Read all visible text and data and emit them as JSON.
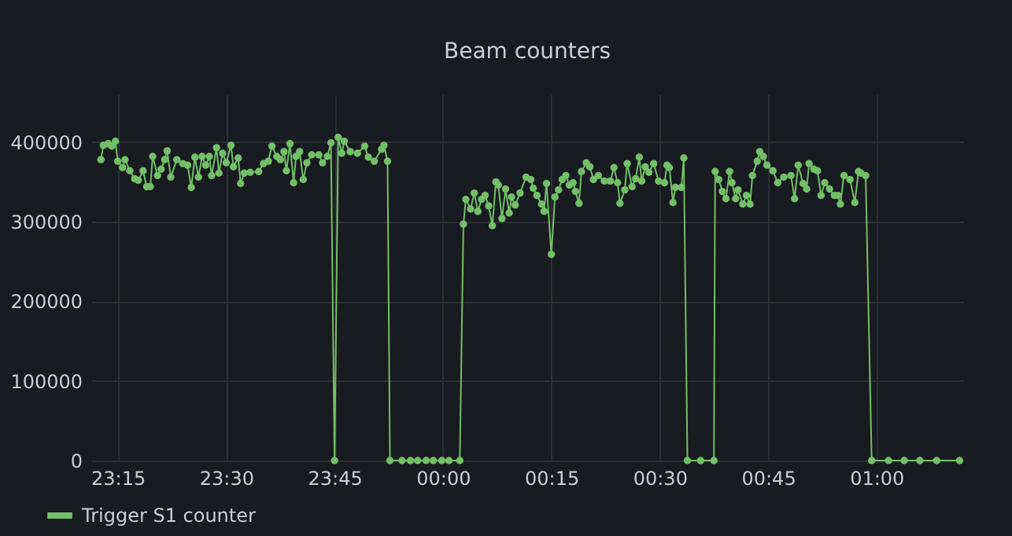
{
  "chart_data": {
    "type": "line",
    "title": "Beam counters",
    "x": [
      "--01-01T23:12:40",
      "--01-01T23:13:00",
      "--01-01T23:13:40",
      "--01-01T23:14:10",
      "--01-01T23:14:40",
      "--01-01T23:15:00",
      "--01-01T23:15:40",
      "--01-01T23:16:00",
      "--01-01T23:16:40",
      "--01-01T23:17:20",
      "--01-01T23:17:50",
      "--01-01T23:18:30",
      "--01-01T23:19:00",
      "--01-01T23:19:30",
      "--01-01T23:19:50",
      "--01-01T23:20:30",
      "--01-01T23:21:00",
      "--01-01T23:21:30",
      "--01-01T23:21:50",
      "--01-01T23:22:20",
      "--01-01T23:23:10",
      "--01-01T23:24:00",
      "--01-01T23:24:40",
      "--01-01T23:25:10",
      "--01-01T23:25:40",
      "--01-01T23:26:10",
      "--01-01T23:26:40",
      "--01-01T23:27:10",
      "--01-01T23:27:40",
      "--01-01T23:28:00",
      "--01-01T23:28:40",
      "--01-01T23:29:00",
      "--01-01T23:29:30",
      "--01-01T23:30:00",
      "--01-01T23:30:40",
      "--01-01T23:31:00",
      "--01-01T23:31:40",
      "--01-01T23:32:00",
      "--01-01T23:32:30",
      "--01-01T23:33:20",
      "--01-01T23:34:30",
      "--01-01T23:35:10",
      "--01-01T23:35:50",
      "--01-01T23:36:20",
      "--01-01T23:37:00",
      "--01-01T23:37:30",
      "--01-01T23:38:00",
      "--01-01T23:38:20",
      "--01-01T23:38:50",
      "--01-01T23:39:20",
      "--01-01T23:39:40",
      "--01-01T23:40:10",
      "--01-01T23:40:40",
      "--01-01T23:41:10",
      "--01-01T23:41:50",
      "--01-01T23:42:50",
      "--01-01T23:43:20",
      "--01-01T23:44:00",
      "--01-01T23:44:30",
      "--01-01T23:45:00",
      "--01-01T23:45:30",
      "--01-01T23:46:00",
      "--01-01T23:46:20",
      "--01-01T23:47:10",
      "--01-01T23:48:10",
      "--01-01T23:49:10",
      "--01-01T23:49:40",
      "--01-01T23:50:30",
      "--01-01T23:51:30",
      "--01-01T23:51:50",
      "--01-01T23:52:20",
      "--01-01T23:52:40",
      "--01-01T23:54:20",
      "--01-01T23:55:30",
      "--01-01T23:56:30",
      "--01-01T23:57:40",
      "--01-01T23:58:40",
      "--01-01T23:59:50",
      "--01-02T00:00:50",
      "--01-02T00:02:20",
      "--01-02T00:02:50",
      "--01-02T00:03:10",
      "--01-02T00:03:50",
      "--01-02T00:04:20",
      "--01-02T00:04:50",
      "--01-02T00:05:20",
      "--01-02T00:05:50",
      "--01-02T00:06:20",
      "--01-02T00:06:50",
      "--01-02T00:07:20",
      "--01-02T00:07:40",
      "--01-02T00:08:10",
      "--01-02T00:08:40",
      "--01-02T00:09:10",
      "--01-02T00:09:30",
      "--01-02T00:10:00",
      "--01-02T00:10:40",
      "--01-02T00:11:30",
      "--01-02T00:12:10",
      "--01-02T00:12:30",
      "--01-02T00:13:00",
      "--01-02T00:13:40",
      "--01-02T00:14:00",
      "--01-02T00:14:20",
      "--01-02T00:15:00",
      "--01-02T00:15:30",
      "--01-02T00:16:00",
      "--01-02T00:16:30",
      "--01-02T00:17:00",
      "--01-02T00:17:30",
      "--01-02T00:18:00",
      "--01-02T00:18:20",
      "--01-02T00:18:50",
      "--01-02T00:19:10",
      "--01-02T00:19:50",
      "--01-02T00:20:20",
      "--01-02T00:20:50",
      "--01-02T00:21:30",
      "--01-02T00:22:20",
      "--01-02T00:23:10",
      "--01-02T00:23:40",
      "--01-02T00:24:10",
      "--01-02T00:24:30",
      "--01-02T00:25:10",
      "--01-02T00:25:30",
      "--01-02T00:26:10",
      "--01-02T00:26:40",
      "--01-02T00:27:10",
      "--01-02T00:27:30",
      "--01-02T00:28:00",
      "--01-02T00:28:30",
      "--01-02T00:29:10",
      "--01-02T00:29:50",
      "--01-02T00:30:40",
      "--01-02T00:31:00",
      "--01-02T00:31:20",
      "--01-02T00:31:50",
      "--01-02T00:32:10",
      "--01-02T00:33:00",
      "--01-02T00:33:20",
      "--01-02T00:33:50",
      "--01-02T00:35:40",
      "--01-02T00:37:30",
      "--01-02T00:37:40",
      "--01-02T00:38:10",
      "--01-02T00:38:40",
      "--01-02T00:39:10",
      "--01-02T00:39:40",
      "--01-02T00:40:00",
      "--01-02T00:40:30",
      "--01-02T00:40:50",
      "--01-02T00:41:30",
      "--01-02T00:42:00",
      "--01-02T00:42:30",
      "--01-02T00:42:50",
      "--01-02T00:43:30",
      "--01-02T00:43:50",
      "--01-02T00:44:20",
      "--01-02T00:44:50",
      "--01-02T00:45:40",
      "--01-02T00:46:20",
      "--01-02T00:47:10",
      "--01-02T00:48:10",
      "--01-02T00:48:40",
      "--01-02T00:49:10",
      "--01-02T00:49:50",
      "--01-02T00:50:20",
      "--01-02T00:50:40",
      "--01-02T00:51:20",
      "--01-02T00:51:50",
      "--01-02T00:52:20",
      "--01-02T00:52:50",
      "--01-02T00:53:30",
      "--01-02T00:54:10",
      "--01-02T00:54:40",
      "--01-02T00:55:00",
      "--01-02T00:55:30",
      "--01-02T00:56:20",
      "--01-02T00:57:00",
      "--01-02T00:57:30",
      "--01-02T00:57:50",
      "--01-02T00:58:30",
      "--01-02T00:59:20",
      "--01-02T01:01:40",
      "--01-02T01:03:50",
      "--01-02T01:06:00",
      "--01-02T01:08:20",
      "--01-02T01:11:30"
    ],
    "series": [
      {
        "name": "Trigger S1 counter",
        "color": "#73bf69",
        "values": [
          378000,
          396000,
          398000,
          395000,
          401000,
          376000,
          368000,
          378000,
          364000,
          354000,
          352000,
          364000,
          344000,
          344000,
          382000,
          358000,
          366000,
          378000,
          389000,
          356000,
          378000,
          373000,
          371000,
          343000,
          381000,
          356000,
          382000,
          371000,
          382000,
          358000,
          393000,
          361000,
          386000,
          374000,
          396000,
          369000,
          380000,
          348000,
          361000,
          362000,
          363000,
          373000,
          376000,
          395000,
          382000,
          378000,
          388000,
          364000,
          398000,
          349000,
          382000,
          388000,
          353000,
          374000,
          384000,
          384000,
          374000,
          382000,
          399000,
          0,
          406000,
          386000,
          401000,
          388000,
          386000,
          395000,
          381000,
          376000,
          391000,
          396000,
          376000,
          0,
          0,
          0,
          0,
          0,
          0,
          0,
          0,
          0,
          297000,
          328000,
          316000,
          336000,
          313000,
          328000,
          333000,
          320000,
          295000,
          350000,
          346000,
          304000,
          341000,
          311000,
          331000,
          321000,
          336000,
          356000,
          353000,
          342000,
          333000,
          322000,
          313000,
          348000,
          259000,
          331000,
          340000,
          353000,
          358000,
          346000,
          349000,
          338000,
          323000,
          363000,
          374000,
          369000,
          353000,
          358000,
          351000,
          351000,
          368000,
          349000,
          323000,
          340000,
          373000,
          344000,
          354000,
          381000,
          351000,
          369000,
          362000,
          373000,
          351000,
          349000,
          371000,
          368000,
          324000,
          343000,
          343000,
          380000,
          0,
          0,
          0,
          363000,
          353000,
          338000,
          329000,
          363000,
          349000,
          329000,
          340000,
          322000,
          333000,
          322000,
          358000,
          376000,
          388000,
          382000,
          371000,
          364000,
          349000,
          356000,
          358000,
          329000,
          371000,
          348000,
          341000,
          373000,
          366000,
          364000,
          333000,
          349000,
          341000,
          333000,
          333000,
          322000,
          358000,
          353000,
          324000,
          363000,
          361000,
          358000,
          0,
          0,
          0,
          0,
          0,
          0
        ]
      }
    ],
    "xlim": [
      "--01-01T23:11:20",
      "--01-02T01:12:00"
    ],
    "xticks": [
      {
        "value": "--01-01T23:15",
        "label": "23:15"
      },
      {
        "value": "--01-01T23:30",
        "label": "23:30"
      },
      {
        "value": "--01-01T23:45",
        "label": "23:45"
      },
      {
        "value": "--01-02T00:00",
        "label": "00:00"
      },
      {
        "value": "--01-02T00:15",
        "label": "00:15"
      },
      {
        "value": "--01-02T00:30",
        "label": "00:30"
      },
      {
        "value": "--01-02T00:45",
        "label": "00:45"
      },
      {
        "value": "--01-02T01:00",
        "label": "01:00"
      }
    ],
    "ylim": [
      0,
      460000
    ],
    "yticks": [
      0,
      100000,
      200000,
      300000,
      400000
    ],
    "grid": true,
    "legend": "bottom left",
    "marker": "circle",
    "line_style": "solid"
  }
}
